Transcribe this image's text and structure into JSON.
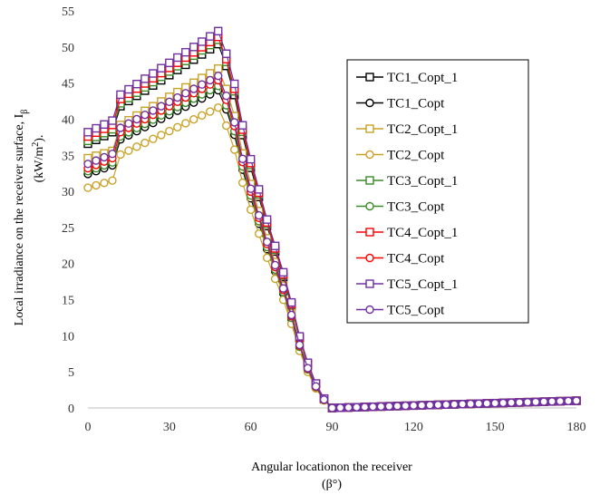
{
  "chart_data": {
    "type": "line",
    "xlabel_line1": "Angular locationon the receiver",
    "xlabel_line2": "(β°)",
    "ylabel_line1": "Local irradiance  on the receiver  surface,  I",
    "ylabel_sub": "β",
    "ylabel_line2_pre": "(kW/m",
    "ylabel_line2_sup": "2",
    "ylabel_line2_post": ").",
    "xlim": [
      0,
      180
    ],
    "ylim": [
      0,
      55
    ],
    "xticks": [
      0,
      30,
      60,
      90,
      120,
      150,
      180
    ],
    "yticks": [
      0,
      5,
      10,
      15,
      20,
      25,
      30,
      35,
      40,
      45,
      50,
      55
    ],
    "grid": false,
    "legend_position": "right",
    "x": [
      0,
      3,
      6,
      9,
      12,
      15,
      18,
      21,
      24,
      27,
      30,
      33,
      36,
      39,
      42,
      45,
      48,
      51,
      54,
      57,
      60,
      63,
      66,
      69,
      72,
      75,
      78,
      81,
      84,
      87,
      90,
      93,
      96,
      99,
      102,
      105,
      108,
      111,
      114,
      117,
      120,
      123,
      126,
      129,
      132,
      135,
      138,
      141,
      144,
      147,
      150,
      153,
      156,
      159,
      162,
      165,
      168,
      171,
      174,
      177,
      180
    ],
    "series": [
      {
        "name": "TC1_Copt_1",
        "color": "#000000",
        "marker": "square",
        "peak": 50.4,
        "y0": 36.6,
        "y9": 38.2
      },
      {
        "name": "TC1_Copt",
        "color": "#000000",
        "marker": "circle",
        "peak": 44.0,
        "y0": 32.4,
        "y9": 33.6
      },
      {
        "name": "TC2_Copt_1",
        "color": "#c9a227",
        "marker": "square",
        "peak": 47.0,
        "y0": 34.6,
        "y9": 35.6
      },
      {
        "name": "TC2_Copt",
        "color": "#c9a227",
        "marker": "circle",
        "peak": 41.6,
        "y0": 30.5,
        "y9": 31.5
      },
      {
        "name": "TC3_Copt_1",
        "color": "#3a8a2a",
        "marker": "square",
        "peak": 51.0,
        "y0": 37.0,
        "y9": 38.6
      },
      {
        "name": "TC3_Copt",
        "color": "#3a8a2a",
        "marker": "circle",
        "peak": 44.6,
        "y0": 32.8,
        "y9": 34.0
      },
      {
        "name": "TC4_Copt_1",
        "color": "#ff0000",
        "marker": "square",
        "peak": 51.4,
        "y0": 37.6,
        "y9": 39.2
      },
      {
        "name": "TC4_Copt",
        "color": "#ff0000",
        "marker": "circle",
        "peak": 45.4,
        "y0": 33.2,
        "y9": 34.6
      },
      {
        "name": "TC5_Copt_1",
        "color": "#7030a0",
        "marker": "square",
        "peak": 52.2,
        "y0": 38.2,
        "y9": 39.8
      },
      {
        "name": "TC5_Copt",
        "color": "#7030a0",
        "marker": "circle",
        "peak": 46.0,
        "y0": 33.8,
        "y9": 35.2
      }
    ],
    "decline": [
      [
        48,
        1.0
      ],
      [
        51,
        0.94
      ],
      [
        54,
        0.86
      ],
      [
        57,
        0.75
      ],
      [
        60,
        0.66
      ],
      [
        63,
        0.58
      ],
      [
        66,
        0.5
      ],
      [
        69,
        0.43
      ],
      [
        72,
        0.36
      ],
      [
        75,
        0.28
      ],
      [
        78,
        0.19
      ],
      [
        81,
        0.12
      ],
      [
        84,
        0.065
      ],
      [
        87,
        0.025
      ],
      [
        90,
        0.0
      ]
    ],
    "tail_end": 1.0
  }
}
